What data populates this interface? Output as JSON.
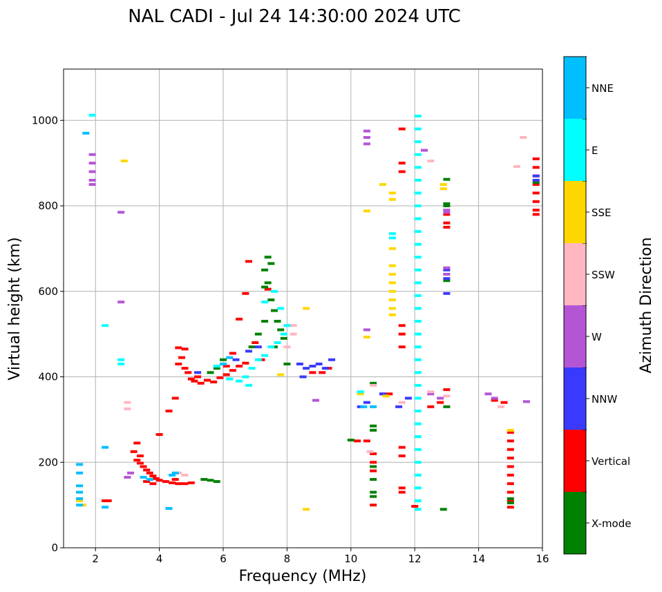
{
  "chart_data": {
    "type": "scatter",
    "title": "NAL CADI - Jul 24 14:30:00 2024 UTC",
    "xlabel": "Frequency (MHz)",
    "ylabel": "Virtual height (km)",
    "xlim": [
      1,
      16
    ],
    "ylim": [
      0,
      1120
    ],
    "grid": true,
    "x_ticks": [
      2,
      4,
      6,
      8,
      10,
      12,
      14,
      16
    ],
    "y_ticks": [
      0,
      200,
      400,
      600,
      800,
      1000
    ],
    "colorbar": {
      "label": "Azimuth Direction",
      "categories": [
        "X-mode",
        "Vertical",
        "NNW",
        "W",
        "SSW",
        "SSE",
        "E",
        "NNE"
      ],
      "colors": [
        "#008000",
        "#ff0000",
        "#3a3aff",
        "#b455d6",
        "#ffb6c1",
        "#ffd700",
        "#00ffff",
        "#00bfff"
      ]
    },
    "series": [
      {
        "name": "Vertical",
        "points": [
          [
            5.0,
            395
          ],
          [
            5.1,
            390
          ],
          [
            5.3,
            385
          ],
          [
            5.5,
            392
          ],
          [
            5.7,
            388
          ],
          [
            5.9,
            398
          ],
          [
            6.1,
            405
          ],
          [
            6.3,
            415
          ],
          [
            6.5,
            425
          ],
          [
            6.7,
            432
          ],
          [
            4.6,
            430
          ],
          [
            4.7,
            445
          ],
          [
            4.8,
            420
          ],
          [
            4.9,
            410
          ],
          [
            5.2,
            400
          ],
          [
            4.6,
            468
          ],
          [
            4.8,
            465
          ],
          [
            3.3,
            205
          ],
          [
            3.4,
            198
          ],
          [
            3.5,
            190
          ],
          [
            3.6,
            182
          ],
          [
            3.7,
            175
          ],
          [
            3.8,
            168
          ],
          [
            3.9,
            162
          ],
          [
            4.0,
            158
          ],
          [
            4.2,
            155
          ],
          [
            4.4,
            152
          ],
          [
            4.6,
            150
          ],
          [
            4.8,
            150
          ],
          [
            5.0,
            152
          ],
          [
            3.4,
            215
          ],
          [
            3.2,
            225
          ],
          [
            3.3,
            245
          ],
          [
            3.6,
            155
          ],
          [
            3.8,
            150
          ],
          [
            4.5,
            160
          ],
          [
            6.1,
            425
          ],
          [
            6.3,
            455
          ],
          [
            6.5,
            535
          ],
          [
            6.7,
            595
          ],
          [
            6.8,
            670
          ],
          [
            7.0,
            480
          ],
          [
            7.2,
            440
          ],
          [
            7.4,
            605
          ],
          [
            4.0,
            265
          ],
          [
            4.3,
            320
          ],
          [
            4.5,
            350
          ],
          [
            10.2,
            250
          ],
          [
            10.5,
            250
          ],
          [
            10.7,
            220
          ],
          [
            10.7,
            200
          ],
          [
            10.7,
            180
          ],
          [
            10.7,
            100
          ],
          [
            11.2,
            360
          ],
          [
            11.6,
            235
          ],
          [
            11.6,
            215
          ],
          [
            11.6,
            140
          ],
          [
            11.6,
            130
          ],
          [
            11.6,
            900
          ],
          [
            11.6,
            880
          ],
          [
            11.6,
            980
          ],
          [
            11.6,
            520
          ],
          [
            11.6,
            500
          ],
          [
            11.6,
            470
          ],
          [
            12.5,
            330
          ],
          [
            12.8,
            340
          ],
          [
            13.0,
            370
          ],
          [
            13.0,
            780
          ],
          [
            13.0,
            760
          ],
          [
            13.0,
            750
          ],
          [
            14.5,
            345
          ],
          [
            14.8,
            340
          ],
          [
            15.0,
            270
          ],
          [
            15.0,
            250
          ],
          [
            15.0,
            230
          ],
          [
            15.0,
            210
          ],
          [
            15.0,
            190
          ],
          [
            15.0,
            170
          ],
          [
            15.0,
            150
          ],
          [
            15.0,
            130
          ],
          [
            15.0,
            110
          ],
          [
            15.0,
            95
          ],
          [
            15.8,
            910
          ],
          [
            15.8,
            890
          ],
          [
            15.8,
            870
          ],
          [
            15.8,
            850
          ],
          [
            15.8,
            830
          ],
          [
            15.8,
            810
          ],
          [
            15.8,
            790
          ],
          [
            15.8,
            780
          ],
          [
            2.3,
            110
          ],
          [
            2.4,
            110
          ],
          [
            11.0,
            360
          ],
          [
            12.0,
            97
          ],
          [
            8.8,
            410
          ],
          [
            9.1,
            410
          ],
          [
            9.3,
            420
          ]
        ]
      },
      {
        "name": "X-mode",
        "points": [
          [
            7.3,
            650
          ],
          [
            7.4,
            620
          ],
          [
            7.5,
            580
          ],
          [
            7.6,
            555
          ],
          [
            7.7,
            530
          ],
          [
            7.8,
            510
          ],
          [
            7.9,
            490
          ],
          [
            7.4,
            680
          ],
          [
            7.5,
            665
          ],
          [
            7.3,
            610
          ],
          [
            7.6,
            470
          ],
          [
            7.1,
            500
          ],
          [
            6.9,
            470
          ],
          [
            7.3,
            530
          ],
          [
            6.0,
            440
          ],
          [
            5.8,
            420
          ],
          [
            5.6,
            410
          ],
          [
            5.4,
            160
          ],
          [
            5.6,
            158
          ],
          [
            5.8,
            155
          ],
          [
            10.0,
            252
          ],
          [
            10.7,
            285
          ],
          [
            10.7,
            275
          ],
          [
            10.7,
            190
          ],
          [
            10.7,
            160
          ],
          [
            10.7,
            130
          ],
          [
            10.7,
            120
          ],
          [
            10.7,
            385
          ],
          [
            13.0,
            862
          ],
          [
            13.0,
            805
          ],
          [
            13.0,
            800
          ],
          [
            13.0,
            640
          ],
          [
            13.0,
            625
          ],
          [
            13.0,
            330
          ],
          [
            12.9,
            90
          ],
          [
            15.0,
            115
          ],
          [
            15.0,
            105
          ],
          [
            15.8,
            855
          ],
          [
            8.0,
            430
          ]
        ]
      },
      {
        "name": "NNW",
        "points": [
          [
            8.4,
            430
          ],
          [
            8.6,
            420
          ],
          [
            8.8,
            425
          ],
          [
            9.0,
            430
          ],
          [
            9.2,
            420
          ],
          [
            9.4,
            440
          ],
          [
            8.5,
            400
          ],
          [
            6.8,
            460
          ],
          [
            6.4,
            440
          ],
          [
            7.1,
            470
          ],
          [
            10.3,
            330
          ],
          [
            10.5,
            340
          ],
          [
            11.0,
            360
          ],
          [
            11.5,
            330
          ],
          [
            11.8,
            350
          ],
          [
            13.0,
            595
          ],
          [
            13.0,
            650
          ],
          [
            13.0,
            630
          ],
          [
            15.8,
            870
          ],
          [
            15.8,
            860
          ],
          [
            5.2,
            410
          ]
        ]
      },
      {
        "name": "W",
        "points": [
          [
            1.9,
            920
          ],
          [
            1.9,
            900
          ],
          [
            1.9,
            880
          ],
          [
            1.9,
            860
          ],
          [
            1.9,
            850
          ],
          [
            10.5,
            975
          ],
          [
            10.5,
            960
          ],
          [
            10.5,
            945
          ],
          [
            10.5,
            510
          ],
          [
            12.3,
            930
          ],
          [
            12.5,
            360
          ],
          [
            12.8,
            350
          ],
          [
            13.0,
            790
          ],
          [
            13.0,
            785
          ],
          [
            13.0,
            655
          ],
          [
            13.0,
            640
          ],
          [
            14.3,
            360
          ],
          [
            14.5,
            350
          ],
          [
            15.5,
            342
          ],
          [
            8.9,
            345
          ],
          [
            3.0,
            165
          ],
          [
            3.1,
            175
          ],
          [
            2.8,
            575
          ],
          [
            2.8,
            785
          ]
        ]
      },
      {
        "name": "SSW",
        "points": [
          [
            15.4,
            960
          ],
          [
            15.2,
            892
          ],
          [
            12.5,
            905
          ],
          [
            12.5,
            365
          ],
          [
            13.0,
            355
          ],
          [
            14.7,
            330
          ],
          [
            8.2,
            520
          ],
          [
            8.2,
            500
          ],
          [
            8.0,
            470
          ],
          [
            4.6,
            175
          ],
          [
            4.8,
            170
          ],
          [
            3.0,
            340
          ],
          [
            3.0,
            325
          ],
          [
            11.6,
            340
          ],
          [
            10.6,
            225
          ],
          [
            10.7,
            380
          ]
        ]
      },
      {
        "name": "SSE",
        "points": [
          [
            11.3,
            830
          ],
          [
            11.3,
            815
          ],
          [
            11.3,
            700
          ],
          [
            11.3,
            660
          ],
          [
            11.3,
            640
          ],
          [
            11.3,
            620
          ],
          [
            11.3,
            600
          ],
          [
            11.3,
            580
          ],
          [
            11.3,
            560
          ],
          [
            11.3,
            545
          ],
          [
            11.0,
            850
          ],
          [
            12.9,
            850
          ],
          [
            12.9,
            840
          ],
          [
            10.5,
            788
          ],
          [
            10.5,
            493
          ],
          [
            8.6,
            560
          ],
          [
            8.6,
            90
          ],
          [
            1.5,
            110
          ],
          [
            1.6,
            100
          ],
          [
            2.9,
            905
          ],
          [
            15.0,
            275
          ],
          [
            11.1,
            355
          ],
          [
            10.3,
            360
          ],
          [
            7.8,
            405
          ]
        ]
      },
      {
        "name": "E",
        "points": [
          [
            12.1,
            1010
          ],
          [
            12.1,
            980
          ],
          [
            12.1,
            950
          ],
          [
            12.1,
            920
          ],
          [
            12.1,
            890
          ],
          [
            12.1,
            860
          ],
          [
            12.1,
            830
          ],
          [
            12.1,
            800
          ],
          [
            12.1,
            770
          ],
          [
            12.1,
            740
          ],
          [
            12.1,
            710
          ],
          [
            12.1,
            680
          ],
          [
            12.1,
            650
          ],
          [
            12.1,
            620
          ],
          [
            12.1,
            590
          ],
          [
            12.1,
            560
          ],
          [
            12.1,
            530
          ],
          [
            12.1,
            500
          ],
          [
            12.1,
            470
          ],
          [
            12.1,
            440
          ],
          [
            12.1,
            410
          ],
          [
            12.1,
            380
          ],
          [
            12.1,
            350
          ],
          [
            12.1,
            320
          ],
          [
            12.1,
            290
          ],
          [
            12.1,
            260
          ],
          [
            12.1,
            230
          ],
          [
            12.1,
            200
          ],
          [
            12.1,
            170
          ],
          [
            12.1,
            140
          ],
          [
            12.1,
            110
          ],
          [
            12.1,
            90
          ],
          [
            6.5,
            390
          ],
          [
            6.7,
            400
          ],
          [
            6.9,
            420
          ],
          [
            7.1,
            440
          ],
          [
            7.3,
            450
          ],
          [
            7.5,
            470
          ],
          [
            7.7,
            480
          ],
          [
            7.9,
            500
          ],
          [
            8.0,
            520
          ],
          [
            7.8,
            560
          ],
          [
            7.6,
            600
          ],
          [
            7.3,
            575
          ],
          [
            6.8,
            380
          ],
          [
            6.2,
            395
          ],
          [
            5.8,
            425
          ],
          [
            11.3,
            735
          ],
          [
            11.3,
            725
          ],
          [
            10.3,
            365
          ],
          [
            1.9,
            1012
          ],
          [
            2.8,
            440
          ],
          [
            2.8,
            430
          ],
          [
            2.3,
            520
          ]
        ]
      },
      {
        "name": "NNE",
        "points": [
          [
            1.5,
            195
          ],
          [
            1.5,
            175
          ],
          [
            1.5,
            145
          ],
          [
            1.5,
            130
          ],
          [
            1.5,
            115
          ],
          [
            1.5,
            100
          ],
          [
            1.7,
            970
          ],
          [
            2.3,
            95
          ],
          [
            2.3,
            235
          ],
          [
            3.5,
            165
          ],
          [
            3.7,
            160
          ],
          [
            4.3,
            92
          ],
          [
            4.4,
            170
          ],
          [
            4.5,
            175
          ],
          [
            10.7,
            330
          ],
          [
            10.4,
            330
          ],
          [
            6.0,
            430
          ],
          [
            6.2,
            445
          ]
        ]
      }
    ]
  }
}
